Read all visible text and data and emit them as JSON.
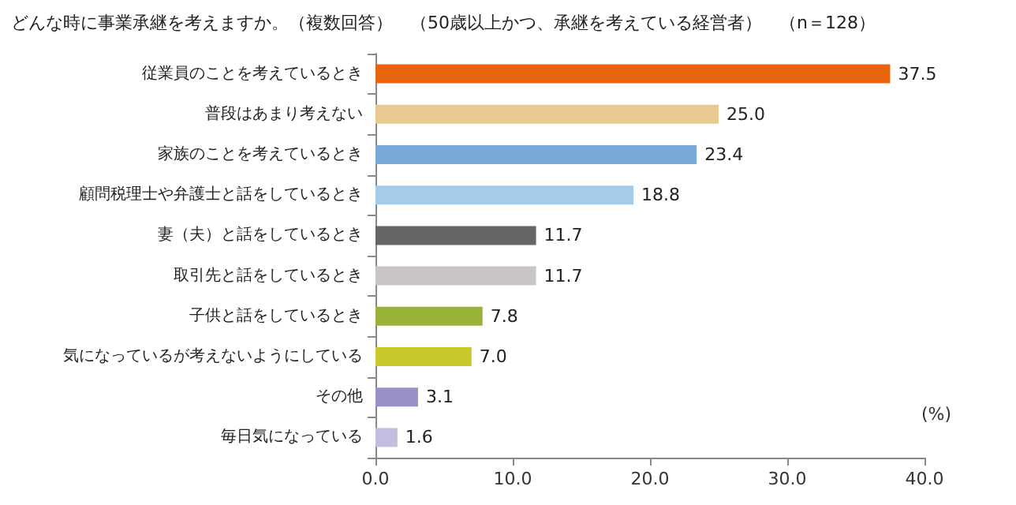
{
  "chart_data": {
    "type": "bar",
    "orientation": "horizontal",
    "title": "どんな時に事業承継を考えますか。（複数回答）　（50歳以上かつ、承継を考えている経営者）　（n＝128）",
    "xlabel": "(%)",
    "categories": [
      "従業員のことを考えているとき",
      "普段はあまり考えない",
      "家族のことを考えているとき",
      "顧問税理士や弁護士と話をしているとき",
      "妻（夫）と話をしているとき",
      "取引先と話をしているとき",
      "子供と話をしているとき",
      "気になっているが考えないようにしている",
      "その他",
      "毎日気になっている"
    ],
    "values": [
      37.5,
      25.0,
      23.4,
      18.8,
      11.7,
      11.7,
      7.8,
      7.0,
      3.1,
      1.6
    ],
    "value_labels": [
      "37.5",
      "25.0",
      "23.4",
      "18.8",
      "11.7",
      "11.7",
      "7.8",
      "7.0",
      "3.1",
      "1.6"
    ],
    "colors": [
      "#e8640f",
      "#e9c891",
      "#78a8d6",
      "#a4cbea",
      "#666666",
      "#c9c5c5",
      "#97b33a",
      "#c9c92c",
      "#9990c6",
      "#c5bde0"
    ],
    "xlim": [
      0,
      40
    ],
    "xticks": [
      {
        "value": 0,
        "label": "0.0"
      },
      {
        "value": 10,
        "label": "10.0"
      },
      {
        "value": 20,
        "label": "20.0"
      },
      {
        "value": 30,
        "label": "30.0"
      },
      {
        "value": 40,
        "label": "40.0"
      }
    ],
    "grid": false
  }
}
